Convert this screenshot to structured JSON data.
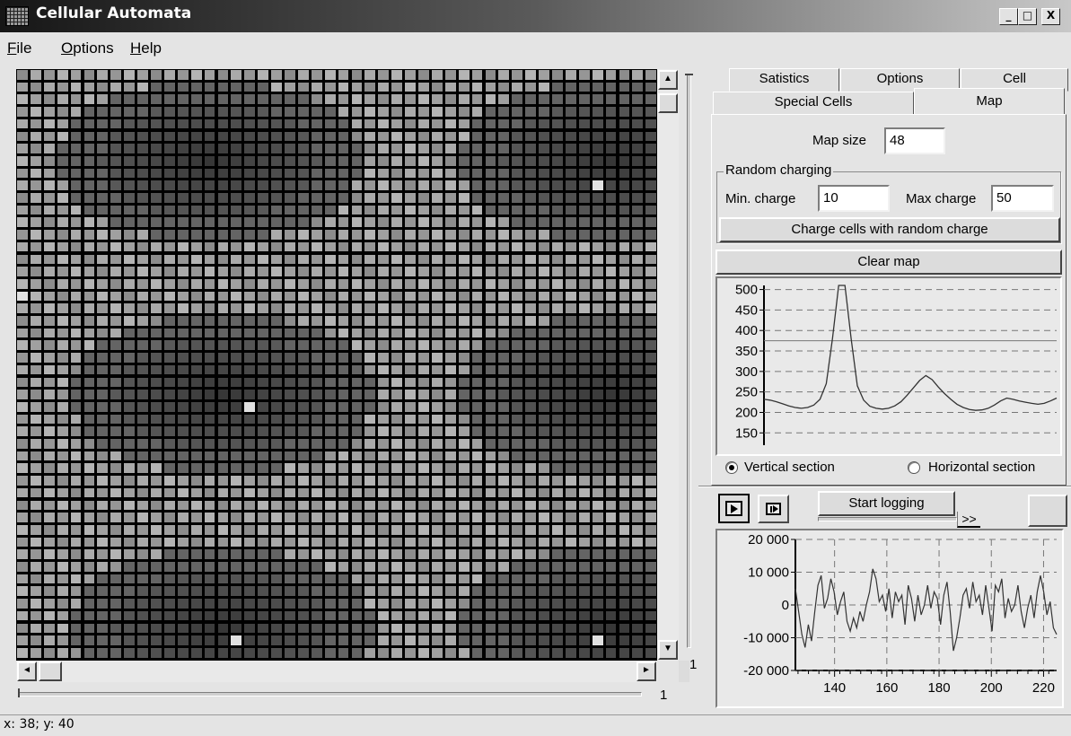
{
  "window": {
    "title": "Cellular Automata",
    "minimize": "_",
    "maximize": "□",
    "close": "X"
  },
  "menu": [
    {
      "label": "File",
      "key": "F",
      "rest": "ile"
    },
    {
      "label": "Options",
      "key": "O",
      "rest": "ptions"
    },
    {
      "label": "Help",
      "key": "H",
      "rest": "elp"
    }
  ],
  "map": {
    "size": 48,
    "vertical_slider_value": "1",
    "horizontal_slider_value": "1"
  },
  "tabs": {
    "row1": [
      "Satistics",
      "Options",
      "Cell"
    ],
    "row2": [
      "Special Cells",
      "Map"
    ],
    "active": "Map"
  },
  "map_tab": {
    "map_size_label": "Map size",
    "map_size_value": "48",
    "random_group_label": "Random charging",
    "min_charge_label": "Min. charge",
    "min_charge_value": "10",
    "max_charge_label": "Max charge",
    "max_charge_value": "50",
    "charge_button": "Charge cells with random charge",
    "clear_button": "Clear map",
    "radio_vertical": "Vertical section",
    "radio_horizontal": "Horizontal section",
    "selected_section": "vertical"
  },
  "logging": {
    "start_button": "Start logging",
    "next_button": ">>"
  },
  "section_chart_data": {
    "type": "line",
    "title": "",
    "yticks": [
      "500",
      "450",
      "400",
      "350",
      "300",
      "250",
      "200",
      "150"
    ],
    "ylim": [
      120,
      510
    ],
    "x": [
      0,
      1,
      2,
      3,
      4,
      5,
      6,
      7,
      8,
      9,
      10,
      11,
      12,
      13,
      14,
      15,
      16,
      17,
      18,
      19,
      20,
      21,
      22,
      23,
      24,
      25,
      26,
      27,
      28,
      29,
      30,
      31,
      32,
      33,
      34,
      35,
      36,
      37,
      38,
      39,
      40,
      41,
      42,
      43,
      44,
      45,
      46,
      47
    ],
    "values": [
      232,
      230,
      226,
      221,
      216,
      212,
      210,
      212,
      218,
      232,
      270,
      380,
      510,
      510,
      380,
      265,
      230,
      215,
      210,
      208,
      210,
      216,
      226,
      242,
      260,
      278,
      290,
      280,
      262,
      246,
      232,
      220,
      212,
      207,
      205,
      206,
      210,
      218,
      228,
      235,
      232,
      228,
      225,
      222,
      220,
      222,
      228,
      235
    ],
    "grid": true
  },
  "log_chart_data": {
    "type": "line",
    "title": "",
    "yticks": [
      "20 000",
      "10 000",
      "0",
      "-10 000",
      "-20 000"
    ],
    "xticks": [
      "140",
      "160",
      "180",
      "200",
      "220"
    ],
    "xlim": [
      125,
      225
    ],
    "ylim": [
      -20000,
      20000
    ],
    "values": [
      5000,
      -2000,
      -9000,
      -13000,
      -6000,
      -11000,
      -2000,
      6000,
      9000,
      -1000,
      2000,
      8000,
      4000,
      -3000,
      1000,
      4000,
      -5000,
      -8000,
      -4000,
      -7000,
      -2000,
      -5000,
      0,
      4000,
      11000,
      8000,
      1000,
      3000,
      -2000,
      5000,
      -4000,
      4000,
      1000,
      3000,
      -6000,
      6000,
      2000,
      -5000,
      3000,
      -3000,
      0,
      6000,
      -1000,
      4000,
      2000,
      -6000,
      3000,
      7000,
      -2000,
      -14000,
      -10000,
      -4000,
      3000,
      5000,
      -1000,
      7000,
      1000,
      3000,
      -3000,
      6000,
      -1000,
      -8000,
      6000,
      4000,
      8000,
      -4000,
      2000,
      -2000,
      0,
      6000,
      -2000,
      -7000,
      -1000,
      3000,
      -4000,
      4000,
      9000,
      4000,
      -3000,
      1000,
      -7000,
      -9000
    ]
  },
  "status": {
    "coords": "x: 38; y: 40"
  }
}
